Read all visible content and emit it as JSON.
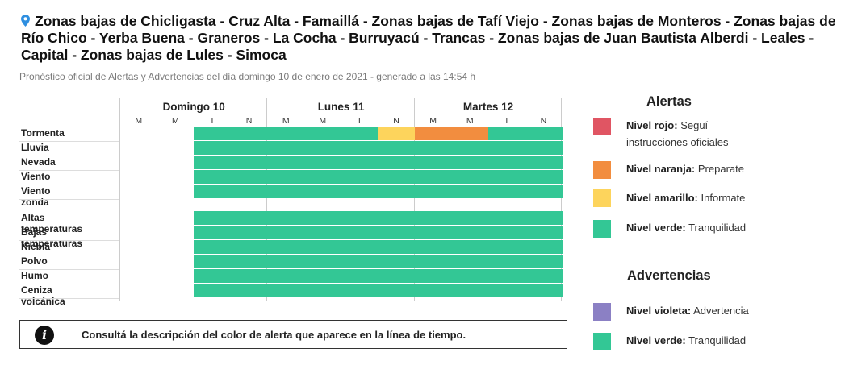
{
  "header": {
    "title": "Zonas bajas de Chicligasta - Cruz Alta - Famaillá - Zonas bajas de Tafí Viejo - Zonas bajas de Monteros - Zonas bajas de Río Chico - Yerba Buena - Graneros - La Cocha - Burruyacú - Trancas - Zonas bajas de Juan Bautista Alberdi - Leales - Capital - Zonas bajas de Lules - Simoca",
    "subtitle": "Pronóstico oficial de Alertas y Advertencias del día domingo 10 de enero de 2021 - generado a las 14:54 h"
  },
  "colors": {
    "rojo": "#e05563",
    "naranja": "#f28d3f",
    "amarillo": "#fdd45c",
    "verde": "#33c795",
    "violeta": "#8b80c4",
    "pin": "#2f8fe0"
  },
  "timeline": {
    "days": [
      {
        "name": "Domingo 10",
        "slots": [
          "M",
          "M",
          "T",
          "N"
        ]
      },
      {
        "name": "Lunes 11",
        "slots": [
          "M",
          "M",
          "T",
          "N"
        ]
      },
      {
        "name": "Martes 12",
        "slots": [
          "M",
          "M",
          "T",
          "N"
        ]
      }
    ],
    "rows": [
      {
        "label": "Tormenta",
        "levels": [
          null,
          null,
          "verde",
          "verde",
          "verde",
          "verde",
          "verde",
          "amarillo",
          "naranja",
          "naranja",
          "verde",
          "verde"
        ]
      },
      {
        "label": "Lluvia",
        "levels": [
          null,
          null,
          "verde",
          "verde",
          "verde",
          "verde",
          "verde",
          "verde",
          "verde",
          "verde",
          "verde",
          "verde"
        ]
      },
      {
        "label": "Nevada",
        "levels": [
          null,
          null,
          "verde",
          "verde",
          "verde",
          "verde",
          "verde",
          "verde",
          "verde",
          "verde",
          "verde",
          "verde"
        ]
      },
      {
        "label": "Viento",
        "levels": [
          null,
          null,
          "verde",
          "verde",
          "verde",
          "verde",
          "verde",
          "verde",
          "verde",
          "verde",
          "verde",
          "verde"
        ]
      },
      {
        "label": "Viento zonda",
        "levels": [
          null,
          null,
          "verde",
          "verde",
          "verde",
          "verde",
          "verde",
          "verde",
          "verde",
          "verde",
          "verde",
          "verde"
        ]
      },
      {
        "label": "Altas temperaturas",
        "levels": [
          null,
          null,
          "verde",
          "verde",
          "verde",
          "verde",
          "verde",
          "verde",
          "verde",
          "verde",
          "verde",
          "verde"
        ]
      },
      {
        "label": "Bajas temperaturas",
        "levels": [
          null,
          null,
          "verde",
          "verde",
          "verde",
          "verde",
          "verde",
          "verde",
          "verde",
          "verde",
          "verde",
          "verde"
        ]
      },
      {
        "label": "Niebla",
        "levels": [
          null,
          null,
          "verde",
          "verde",
          "verde",
          "verde",
          "verde",
          "verde",
          "verde",
          "verde",
          "verde",
          "verde"
        ]
      },
      {
        "label": "Polvo",
        "levels": [
          null,
          null,
          "verde",
          "verde",
          "verde",
          "verde",
          "verde",
          "verde",
          "verde",
          "verde",
          "verde",
          "verde"
        ]
      },
      {
        "label": "Humo",
        "levels": [
          null,
          null,
          "verde",
          "verde",
          "verde",
          "verde",
          "verde",
          "verde",
          "verde",
          "verde",
          "verde",
          "verde"
        ]
      },
      {
        "label": "Ceniza volcánica",
        "levels": [
          null,
          null,
          "verde",
          "verde",
          "verde",
          "verde",
          "verde",
          "verde",
          "verde",
          "verde",
          "verde",
          "verde"
        ]
      }
    ]
  },
  "info": {
    "icon": "info-icon",
    "icon_glyph": "i",
    "text": "Consultá la descripción del color de alerta que aparece en la línea de tiempo."
  },
  "legend": {
    "alertas_title": "Alertas",
    "alertas": [
      {
        "color": "rojo",
        "level": "Nivel rojo:",
        "desc": "Seguí instrucciones oficiales"
      },
      {
        "color": "naranja",
        "level": "Nivel naranja:",
        "desc": "Preparate"
      },
      {
        "color": "amarillo",
        "level": "Nivel amarillo:",
        "desc": "Informate"
      },
      {
        "color": "verde",
        "level": "Nivel verde:",
        "desc": "Tranquilidad"
      }
    ],
    "advertencias_title": "Advertencias",
    "advertencias": [
      {
        "color": "violeta",
        "level": "Nivel violeta:",
        "desc": "Advertencia"
      },
      {
        "color": "verde",
        "level": "Nivel verde:",
        "desc": "Tranquilidad"
      }
    ]
  }
}
